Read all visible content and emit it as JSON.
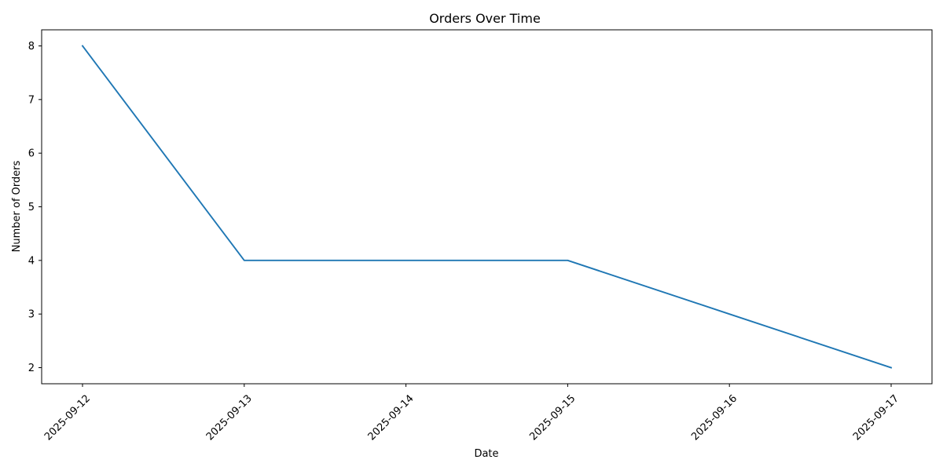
{
  "chart_data": {
    "type": "line",
    "title": "Orders Over Time",
    "xlabel": "Date",
    "ylabel": "Number of Orders",
    "x": [
      "2025-09-12",
      "2025-09-13",
      "2025-09-14",
      "2025-09-15",
      "2025-09-16",
      "2025-09-17"
    ],
    "series": [
      {
        "values": [
          8,
          4,
          4,
          4,
          3,
          2
        ],
        "color": "#1f77b4"
      }
    ],
    "x_tick_labels": [
      "2025-09-12",
      "2025-09-13",
      "2025-09-14",
      "2025-09-15",
      "2025-09-16",
      "2025-09-17"
    ],
    "y_ticks": [
      2,
      3,
      4,
      5,
      6,
      7,
      8
    ],
    "ylim": [
      1.7,
      8.3
    ],
    "grid": false,
    "legend": "none"
  }
}
